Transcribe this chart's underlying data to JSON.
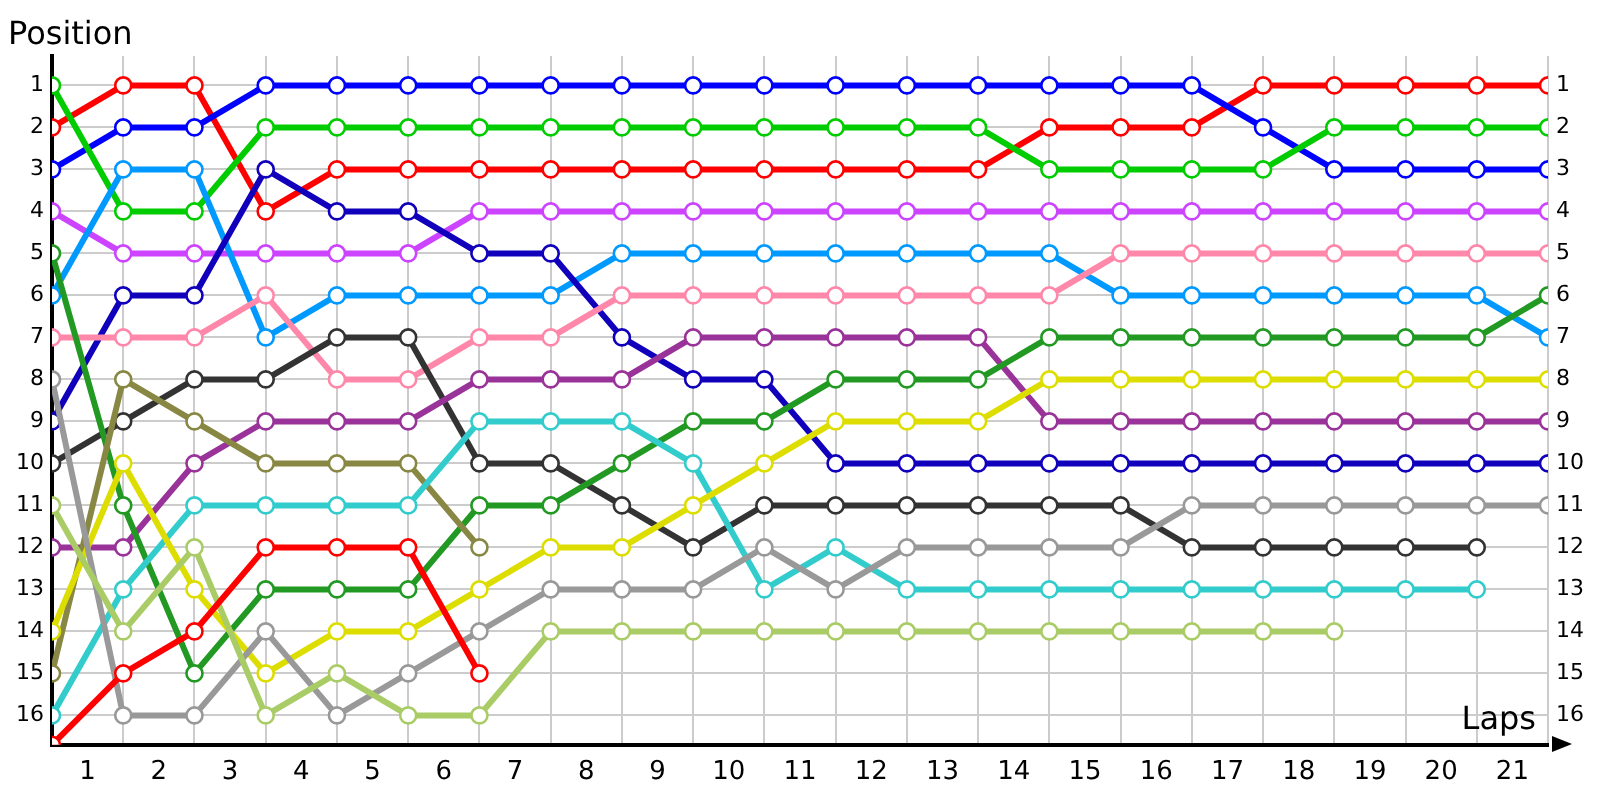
{
  "chart_data": {
    "type": "line",
    "xlabel": "Laps",
    "ylabel": "Position",
    "x": [
      0,
      1,
      2,
      3,
      4,
      5,
      6,
      7,
      8,
      9,
      10,
      11,
      12,
      13,
      14,
      15,
      16,
      17,
      18,
      19,
      20,
      21
    ],
    "xlim": [
      0,
      21
    ],
    "xticks": [
      {
        "value": 0,
        "label": null
      },
      {
        "value": 0.5,
        "label": "1"
      },
      {
        "value": 1,
        "label": null
      },
      {
        "value": 1.5,
        "label": "2"
      },
      {
        "value": 2,
        "label": null
      },
      {
        "value": 2.5,
        "label": "3"
      },
      {
        "value": 3,
        "label": null
      },
      {
        "value": 3.5,
        "label": "4"
      },
      {
        "value": 4,
        "label": null
      },
      {
        "value": 4.5,
        "label": "5"
      },
      {
        "value": 5,
        "label": null
      },
      {
        "value": 5.5,
        "label": "6"
      },
      {
        "value": 6,
        "label": null
      },
      {
        "value": 6.5,
        "label": "7"
      },
      {
        "value": 7,
        "label": null
      },
      {
        "value": 7.5,
        "label": "8"
      },
      {
        "value": 8,
        "label": null
      },
      {
        "value": 8.5,
        "label": "9"
      },
      {
        "value": 9,
        "label": null
      },
      {
        "value": 9.5,
        "label": "10"
      },
      {
        "value": 10,
        "label": null
      },
      {
        "value": 10.5,
        "label": "11"
      },
      {
        "value": 11,
        "label": null
      },
      {
        "value": 11.5,
        "label": "12"
      },
      {
        "value": 12,
        "label": null
      },
      {
        "value": 12.5,
        "label": "13"
      },
      {
        "value": 13,
        "label": null
      },
      {
        "value": 13.5,
        "label": "14"
      },
      {
        "value": 14,
        "label": null
      },
      {
        "value": 14.5,
        "label": "15"
      },
      {
        "value": 15,
        "label": null
      },
      {
        "value": 15.5,
        "label": "16"
      },
      {
        "value": 16,
        "label": null
      },
      {
        "value": 16.5,
        "label": "17"
      },
      {
        "value": 17,
        "label": null
      },
      {
        "value": 17.5,
        "label": "18"
      },
      {
        "value": 18,
        "label": null
      },
      {
        "value": 18.5,
        "label": "19"
      },
      {
        "value": 19,
        "label": null
      },
      {
        "value": 19.5,
        "label": "20"
      },
      {
        "value": 20,
        "label": null
      },
      {
        "value": 20.5,
        "label": "21"
      },
      {
        "value": 21,
        "label": null
      }
    ],
    "ylim": [
      16.7,
      0.3
    ],
    "yticks": [
      1,
      2,
      3,
      4,
      5,
      6,
      7,
      8,
      9,
      10,
      11,
      12,
      13,
      14,
      15,
      16
    ],
    "y2lim": [
      16.7,
      0.3
    ],
    "y2ticks": [
      1,
      2,
      3,
      4,
      5,
      6,
      7,
      8,
      9,
      10,
      11,
      12,
      13,
      14,
      15,
      16
    ],
    "grid": true,
    "legend": false,
    "marker": "circle",
    "line_style": "solid",
    "series": [
      {
        "color": "#ff0000",
        "values": [
          2,
          1,
          1,
          4,
          3,
          3,
          3,
          3,
          3,
          3,
          3,
          3,
          3,
          3,
          2,
          2,
          2,
          1,
          1,
          1,
          1,
          1
        ]
      },
      {
        "color": "#0000ff",
        "values": [
          3,
          2,
          2,
          1,
          1,
          1,
          1,
          1,
          1,
          1,
          1,
          1,
          1,
          1,
          1,
          1,
          1,
          2,
          3,
          3,
          3,
          3
        ]
      },
      {
        "color": "#00cc00",
        "values": [
          1,
          4,
          4,
          2,
          2,
          2,
          2,
          2,
          2,
          2,
          2,
          2,
          2,
          2,
          3,
          3,
          3,
          3,
          2,
          2,
          2,
          2
        ]
      },
      {
        "color": "#cc44ff",
        "values": [
          4,
          5,
          5,
          5,
          5,
          5,
          4,
          4,
          4,
          4,
          4,
          4,
          4,
          4,
          4,
          4,
          4,
          4,
          4,
          4,
          4,
          4
        ]
      },
      {
        "color": "#0099ff",
        "values": [
          6,
          3,
          3,
          7,
          6,
          6,
          6,
          6,
          5,
          5,
          5,
          5,
          5,
          5,
          5,
          6,
          6,
          6,
          6,
          6,
          6,
          7
        ]
      },
      {
        "color": "#1100bb",
        "values": [
          9,
          6,
          6,
          3,
          4,
          4,
          5,
          5,
          7,
          8,
          8,
          10,
          10,
          10,
          10,
          10,
          10,
          10,
          10,
          10,
          10,
          10
        ]
      },
      {
        "color": "#ff88aa",
        "values": [
          7,
          7,
          7,
          6,
          8,
          8,
          7,
          7,
          6,
          6,
          6,
          6,
          6,
          6,
          6,
          5,
          5,
          5,
          5,
          5,
          5,
          5
        ]
      },
      {
        "color": "#333333",
        "values": [
          10,
          9,
          8,
          8,
          7,
          7,
          10,
          10,
          11,
          12,
          11,
          11,
          11,
          11,
          11,
          11,
          12,
          12,
          12,
          12,
          12,
          null
        ]
      },
      {
        "color": "#993399",
        "values": [
          12,
          12,
          10,
          9,
          9,
          9,
          8,
          8,
          8,
          7,
          7,
          7,
          7,
          7,
          9,
          9,
          9,
          9,
          9,
          9,
          9,
          9
        ]
      },
      {
        "color": "#229922",
        "values": [
          5,
          11,
          15,
          13,
          13,
          13,
          11,
          11,
          10,
          9,
          9,
          8,
          8,
          8,
          7,
          7,
          7,
          7,
          7,
          7,
          7,
          6
        ]
      },
      {
        "color": "#888844",
        "values": [
          15,
          8,
          9,
          10,
          10,
          10,
          12,
          null,
          null,
          null,
          null,
          null,
          null,
          null,
          null,
          null,
          null,
          null,
          null,
          null,
          null,
          null
        ]
      },
      {
        "color": "#33cccc",
        "values": [
          16,
          13,
          11,
          11,
          11,
          11,
          9,
          9,
          9,
          10,
          13,
          12,
          13,
          13,
          13,
          13,
          13,
          13,
          13,
          13,
          13,
          null
        ]
      },
      {
        "color": "#dddd00",
        "values": [
          14,
          10,
          13,
          15,
          14,
          14,
          13,
          12,
          12,
          11,
          10,
          9,
          9,
          9,
          8,
          8,
          8,
          8,
          8,
          8,
          8,
          8
        ]
      },
      {
        "color": "#999999",
        "values": [
          8,
          16,
          16,
          14,
          16,
          15,
          14,
          13,
          13,
          13,
          12,
          13,
          12,
          12,
          12,
          12,
          11,
          11,
          11,
          11,
          11,
          11
        ]
      },
      {
        "color": "#aacc66",
        "values": [
          11,
          14,
          12,
          16,
          15,
          16,
          16,
          14,
          14,
          14,
          14,
          14,
          14,
          14,
          14,
          14,
          14,
          14,
          14,
          null,
          null,
          null
        ]
      },
      {
        "color": "#ff0000",
        "values": [
          16.7,
          15,
          14,
          12,
          12,
          12,
          15,
          null,
          null,
          null,
          null,
          null,
          null,
          null,
          null,
          null,
          null,
          null,
          null,
          null,
          null,
          null
        ]
      }
    ]
  }
}
